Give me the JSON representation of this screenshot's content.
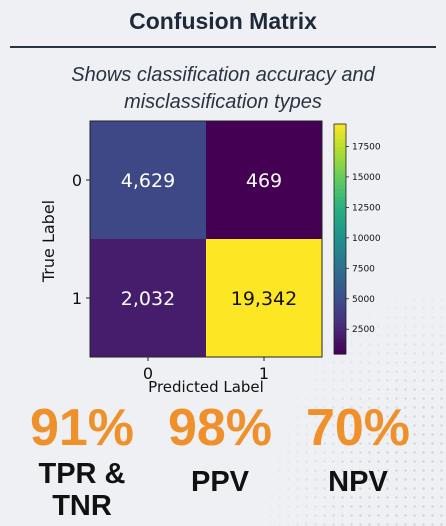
{
  "title": "Confusion Matrix",
  "subtitle_line1": "Shows classification accuracy and",
  "subtitle_line2": "misclassification types",
  "chart_data": {
    "type": "heatmap",
    "x_categories": [
      "0",
      "1"
    ],
    "y_categories": [
      "0",
      "1"
    ],
    "values": [
      [
        4629,
        469
      ],
      [
        2032,
        19342
      ]
    ],
    "cell_labels": [
      [
        "4,629",
        "469"
      ],
      [
        "2,032",
        "19,342"
      ]
    ],
    "xlabel": "Predicted Label",
    "ylabel": "True Label",
    "colorbar_ticks": [
      2500,
      5000,
      7500,
      10000,
      12500,
      15000,
      17500
    ],
    "colorbar_range": [
      469,
      19342
    ],
    "colormap": "viridis"
  },
  "stats": [
    {
      "value": "91%",
      "label_line1": "TPR &",
      "label_line2": "TNR"
    },
    {
      "value": "98%",
      "label_line1": "PPV",
      "label_line2": ""
    },
    {
      "value": "70%",
      "label_line1": "NPV",
      "label_line2": ""
    }
  ],
  "colors": {
    "accent": "#f0902a",
    "title": "#1e2a3a",
    "background": "#eef0f4"
  }
}
